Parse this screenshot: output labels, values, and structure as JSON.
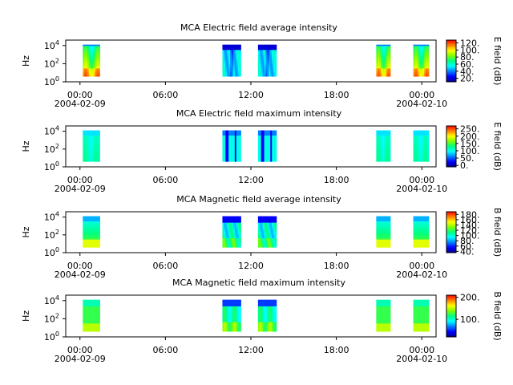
{
  "colorscale": [
    "#00008c",
    "#0000ff",
    "#0080ff",
    "#00ffff",
    "#00ff80",
    "#80ff00",
    "#ffff00",
    "#ff8000",
    "#ff0000"
  ],
  "chart_data": [
    {
      "type": "heatmap",
      "title": "MCA  Electric field average intensity",
      "ylabel": "Hz",
      "cbar_label": "E field (dB)",
      "cbar_ticks": [
        "120.",
        "100.",
        "80.",
        "60.",
        "40.",
        "20."
      ],
      "cbar_values": [
        120,
        100,
        80,
        60,
        40,
        20
      ],
      "cbar_range": [
        10,
        128
      ],
      "xticks": [
        {
          "label": "00:00",
          "date": "2004-02-09"
        },
        {
          "label": "06:00",
          "date": ""
        },
        {
          "label": "12:00",
          "date": ""
        },
        {
          "label": "18:00",
          "date": ""
        },
        {
          "label": "00:00",
          "date": "2004-02-10"
        }
      ],
      "yticks": [
        {
          "base": "10",
          "exp": "0"
        },
        {
          "base": "10",
          "exp": "2"
        },
        {
          "base": "10",
          "exp": "4"
        }
      ],
      "xrange_hours": [
        -1,
        25
      ],
      "yrange_log10": [
        0,
        4.6
      ],
      "segments": [
        {
          "start": 0.2,
          "end": 1.4,
          "pattern": "e_avg"
        },
        {
          "start": 10.0,
          "end": 11.3,
          "pattern": "e_avg_storm"
        },
        {
          "start": 12.5,
          "end": 13.8,
          "pattern": "e_avg_storm"
        },
        {
          "start": 20.8,
          "end": 21.8,
          "pattern": "e_avg"
        },
        {
          "start": 23.4,
          "end": 24.5,
          "pattern": "e_avg"
        }
      ]
    },
    {
      "type": "heatmap",
      "title": "MCA  Electric field maximum intensity",
      "ylabel": "Hz",
      "cbar_label": "E field (dB)",
      "cbar_ticks": [
        "250.",
        "200.",
        "150.",
        "100.",
        "50.",
        "0."
      ],
      "cbar_values": [
        250,
        200,
        150,
        100,
        50,
        0
      ],
      "cbar_range": [
        -10,
        270
      ],
      "xticks": [
        {
          "label": "00:00",
          "date": "2004-02-09"
        },
        {
          "label": "06:00",
          "date": ""
        },
        {
          "label": "12:00",
          "date": ""
        },
        {
          "label": "18:00",
          "date": ""
        },
        {
          "label": "00:00",
          "date": "2004-02-10"
        }
      ],
      "yticks": [
        {
          "base": "10",
          "exp": "0"
        },
        {
          "base": "10",
          "exp": "2"
        },
        {
          "base": "10",
          "exp": "4"
        }
      ],
      "xrange_hours": [
        -1,
        25
      ],
      "yrange_log10": [
        0,
        4.6
      ],
      "segments": [
        {
          "start": 0.2,
          "end": 1.4,
          "pattern": "e_max"
        },
        {
          "start": 10.0,
          "end": 11.3,
          "pattern": "e_max_storm"
        },
        {
          "start": 12.5,
          "end": 13.8,
          "pattern": "e_max_storm"
        },
        {
          "start": 20.8,
          "end": 21.8,
          "pattern": "e_max"
        },
        {
          "start": 23.4,
          "end": 24.5,
          "pattern": "e_max"
        }
      ]
    },
    {
      "type": "heatmap",
      "title": "MCA  Magnetic field average intensity",
      "ylabel": "Hz",
      "cbar_label": "B field (dB)",
      "cbar_ticks": [
        "180.",
        "160.",
        "140.",
        "120.",
        "100.",
        "80.",
        "60.",
        "40."
      ],
      "cbar_values": [
        180,
        160,
        140,
        120,
        100,
        80,
        60,
        40
      ],
      "cbar_range": [
        35,
        190
      ],
      "xticks": [
        {
          "label": "00:00",
          "date": "2004-02-09"
        },
        {
          "label": "06:00",
          "date": ""
        },
        {
          "label": "12:00",
          "date": ""
        },
        {
          "label": "18:00",
          "date": ""
        },
        {
          "label": "00:00",
          "date": "2004-02-10"
        }
      ],
      "yticks": [
        {
          "base": "10",
          "exp": "0"
        },
        {
          "base": "10",
          "exp": "2"
        },
        {
          "base": "10",
          "exp": "4"
        }
      ],
      "xrange_hours": [
        -1,
        25
      ],
      "yrange_log10": [
        0,
        4.6
      ],
      "segments": [
        {
          "start": 0.2,
          "end": 1.4,
          "pattern": "b_avg"
        },
        {
          "start": 10.0,
          "end": 11.3,
          "pattern": "b_avg_storm"
        },
        {
          "start": 12.5,
          "end": 13.8,
          "pattern": "b_avg_storm"
        },
        {
          "start": 20.8,
          "end": 21.8,
          "pattern": "b_avg"
        },
        {
          "start": 23.4,
          "end": 24.5,
          "pattern": "b_avg"
        }
      ]
    },
    {
      "type": "heatmap",
      "title": "MCA  Magnetic field maximum intensity",
      "ylabel": "Hz",
      "cbar_label": "B field (dB)",
      "cbar_ticks": [
        "200.",
        "100."
      ],
      "cbar_values": [
        200,
        100
      ],
      "cbar_range": [
        20,
        210
      ],
      "xticks": [
        {
          "label": "00:00",
          "date": "2004-02-09"
        },
        {
          "label": "06:00",
          "date": ""
        },
        {
          "label": "12:00",
          "date": ""
        },
        {
          "label": "18:00",
          "date": ""
        },
        {
          "label": "00:00",
          "date": "2004-02-10"
        }
      ],
      "yticks": [
        {
          "base": "10",
          "exp": "0"
        },
        {
          "base": "10",
          "exp": "2"
        },
        {
          "base": "10",
          "exp": "4"
        }
      ],
      "xrange_hours": [
        -1,
        25
      ],
      "yrange_log10": [
        0,
        4.6
      ],
      "segments": [
        {
          "start": 0.2,
          "end": 1.4,
          "pattern": "b_max"
        },
        {
          "start": 10.0,
          "end": 11.3,
          "pattern": "b_max_storm"
        },
        {
          "start": 12.5,
          "end": 13.8,
          "pattern": "b_max_storm"
        },
        {
          "start": 20.8,
          "end": 21.8,
          "pattern": "b_max"
        },
        {
          "start": 23.4,
          "end": 24.5,
          "pattern": "b_max"
        }
      ]
    }
  ]
}
